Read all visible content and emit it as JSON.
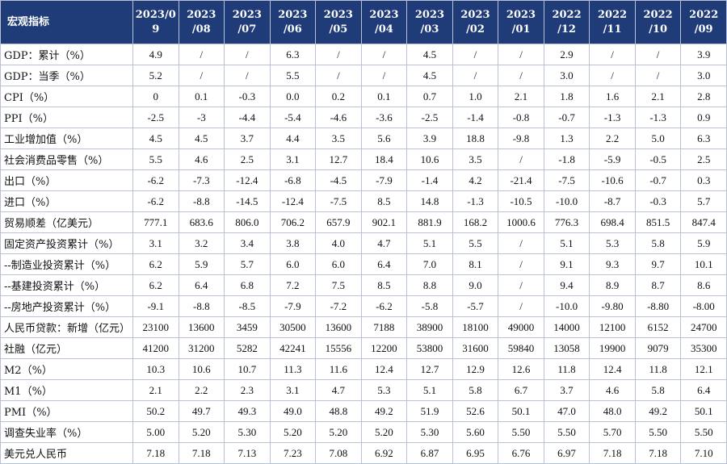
{
  "table": {
    "header_label": "宏观指标",
    "columns": [
      [
        "2023/0",
        "9"
      ],
      [
        "2023",
        "/08"
      ],
      [
        "2023",
        "/07"
      ],
      [
        "2023",
        "/06"
      ],
      [
        "2023",
        "/05"
      ],
      [
        "2023",
        "/04"
      ],
      [
        "2023",
        "/03"
      ],
      [
        "2023",
        "/02"
      ],
      [
        "2023",
        "/01"
      ],
      [
        "2022",
        "/12"
      ],
      [
        "2022",
        "/11"
      ],
      [
        "2022",
        "/10"
      ],
      [
        "2022",
        "/09"
      ]
    ],
    "rows": [
      {
        "label": "GDP：累计（%）",
        "values": [
          "4.9",
          "/",
          "/",
          "6.3",
          "/",
          "/",
          "4.5",
          "/",
          "/",
          "2.9",
          "/",
          "/",
          "3.9"
        ]
      },
      {
        "label": "GDP：当季（%）",
        "values": [
          "5.2",
          "/",
          "/",
          "5.5",
          "/",
          "/",
          "4.5",
          "/",
          "/",
          "3.0",
          "/",
          "/",
          "3.0"
        ]
      },
      {
        "label": "CPI（%）",
        "values": [
          "0",
          "0.1",
          "-0.3",
          "0.0",
          "0.2",
          "0.1",
          "0.7",
          "1.0",
          "2.1",
          "1.8",
          "1.6",
          "2.1",
          "2.8"
        ]
      },
      {
        "label": "PPI（%）",
        "values": [
          "-2.5",
          "-3",
          "-4.4",
          "-5.4",
          "-4.6",
          "-3.6",
          "-2.5",
          "-1.4",
          "-0.8",
          "-0.7",
          "-1.3",
          "-1.3",
          "0.9"
        ]
      },
      {
        "label": "工业增加值（%）",
        "values": [
          "4.5",
          "4.5",
          "3.7",
          "4.4",
          "3.5",
          "5.6",
          "3.9",
          "18.8",
          "-9.8",
          "1.3",
          "2.2",
          "5.0",
          "6.3"
        ]
      },
      {
        "label": "社会消费品零售（%）",
        "values": [
          "5.5",
          "4.6",
          "2.5",
          "3.1",
          "12.7",
          "18.4",
          "10.6",
          "3.5",
          "/",
          "-1.8",
          "-5.9",
          "-0.5",
          "2.5"
        ]
      },
      {
        "label": "出口（%）",
        "values": [
          "-6.2",
          "-7.3",
          "-12.4",
          "-6.8",
          "-4.5",
          "-7.9",
          "-1.4",
          "4.2",
          "-21.4",
          "-7.5",
          "-10.6",
          "-0.7",
          "0.3"
        ]
      },
      {
        "label": "进口（%）",
        "values": [
          "-6.2",
          "-8.8",
          "-14.5",
          "-12.4",
          "-7.5",
          "8.5",
          "14.8",
          "-1.3",
          "-10.5",
          "-10.0",
          "-8.7",
          "-0.3",
          "5.7"
        ]
      },
      {
        "label": "贸易顺差（亿美元）",
        "values": [
          "777.1",
          "683.6",
          "806.0",
          "706.2",
          "657.9",
          "902.1",
          "881.9",
          "168.2",
          "1000.6",
          "776.3",
          "698.4",
          "851.5",
          "847.4"
        ]
      },
      {
        "label": "固定资产投资累计（%）",
        "values": [
          "3.1",
          "3.2",
          "3.4",
          "3.8",
          "4.0",
          "4.7",
          "5.1",
          "5.5",
          "/",
          "5.1",
          "5.3",
          "5.8",
          "5.9"
        ]
      },
      {
        "label": "--制造业投资累计（%）",
        "values": [
          "6.2",
          "5.9",
          "5.7",
          "6.0",
          "6.0",
          "6.4",
          "7.0",
          "8.1",
          "/",
          "9.1",
          "9.3",
          "9.7",
          "10.1"
        ]
      },
      {
        "label": "--基建投资累计（%）",
        "values": [
          "6.2",
          "6.4",
          "6.8",
          "7.2",
          "7.5",
          "8.5",
          "8.8",
          "9.0",
          "/",
          "9.4",
          "8.9",
          "8.7",
          "8.6"
        ]
      },
      {
        "label": "--房地产投资累计（%）",
        "values": [
          "-9.1",
          "-8.8",
          "-8.5",
          "-7.9",
          "-7.2",
          "-6.2",
          "-5.8",
          "-5.7",
          "/",
          "-10.0",
          "-9.80",
          "-8.80",
          "-8.00"
        ]
      },
      {
        "label": "人民币贷款：新增（亿元）",
        "values": [
          "23100",
          "13600",
          "3459",
          "30500",
          "13600",
          "7188",
          "38900",
          "18100",
          "49000",
          "14000",
          "12100",
          "6152",
          "24700"
        ]
      },
      {
        "label": "社融（亿元）",
        "values": [
          "41200",
          "31200",
          "5282",
          "42241",
          "15556",
          "12200",
          "53800",
          "31600",
          "59840",
          "13058",
          "19900",
          "9079",
          "35300"
        ]
      },
      {
        "label": "M2（%）",
        "values": [
          "10.3",
          "10.6",
          "10.7",
          "11.3",
          "11.6",
          "12.4",
          "12.7",
          "12.9",
          "12.6",
          "11.8",
          "12.4",
          "11.8",
          "12.1"
        ]
      },
      {
        "label": "M1（%）",
        "values": [
          "2.1",
          "2.2",
          "2.3",
          "3.1",
          "4.7",
          "5.3",
          "5.1",
          "5.8",
          "6.7",
          "3.7",
          "4.6",
          "5.8",
          "6.4"
        ]
      },
      {
        "label": "PMI（%）",
        "values": [
          "50.2",
          "49.7",
          "49.3",
          "49.0",
          "48.8",
          "49.2",
          "51.9",
          "52.6",
          "50.1",
          "47.0",
          "48.0",
          "49.2",
          "50.1"
        ]
      },
      {
        "label": "调查失业率（%）",
        "values": [
          "5.00",
          "5.20",
          "5.30",
          "5.20",
          "5.20",
          "5.20",
          "5.30",
          "5.60",
          "5.50",
          "5.50",
          "5.70",
          "5.50",
          "5.50"
        ]
      },
      {
        "label": "美元兑人民币",
        "values": [
          "7.18",
          "7.18",
          "7.13",
          "7.23",
          "7.08",
          "6.92",
          "6.87",
          "6.95",
          "6.76",
          "6.97",
          "7.18",
          "7.18",
          "7.10"
        ]
      }
    ]
  }
}
